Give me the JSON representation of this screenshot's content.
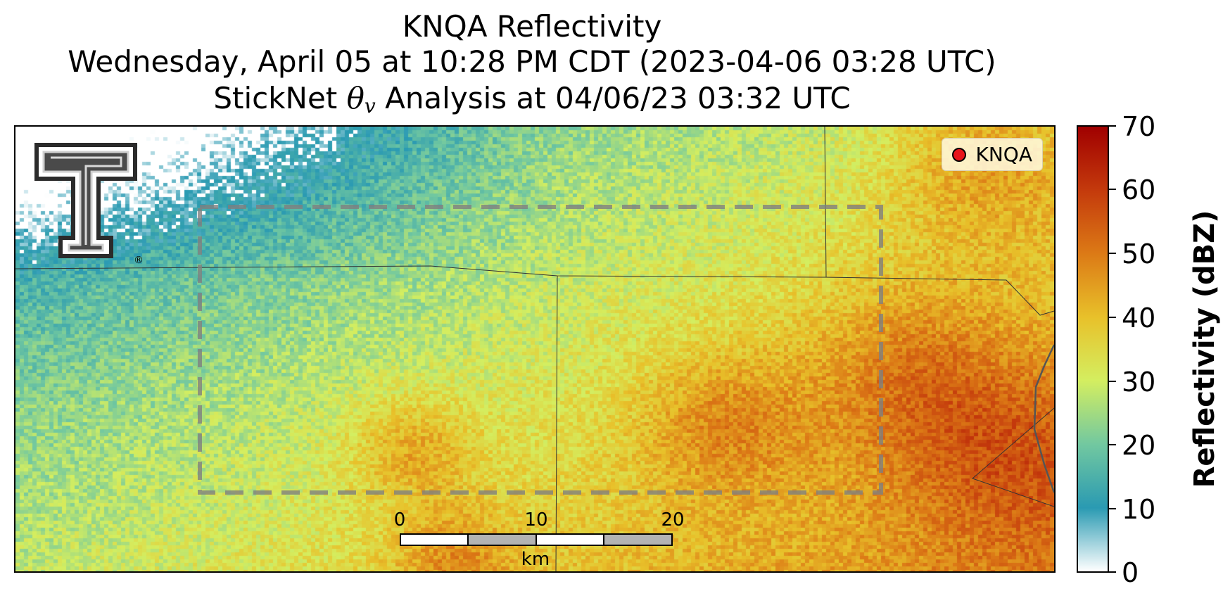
{
  "title": {
    "line1": "KNQA Reflectivity",
    "line2": "Wednesday, April 05 at 10:28 PM CDT (2023-04-06 03:28 UTC)",
    "line3_prefix": "StickNet ",
    "line3_symbol": "θ",
    "line3_subscript": "v",
    "line3_suffix": " Analysis at 04/06/23 03:32 UTC"
  },
  "legend": {
    "marker_color": "#e8141a",
    "label": "KNQA"
  },
  "logo": {
    "icon": "double-t-logo",
    "trademark": "®"
  },
  "scalebar": {
    "labels": [
      "0",
      "10",
      "20"
    ],
    "unit": "km"
  },
  "colorbar": {
    "label": "Reflectivity (dBZ)",
    "ticks": [
      "70",
      "60",
      "50",
      "40",
      "30",
      "20",
      "10",
      "0"
    ],
    "range": [
      0,
      70
    ],
    "colors": [
      "#ffffff",
      "#2a9ab2",
      "#72c8a0",
      "#d4ee60",
      "#e8c12a",
      "#dc7a16",
      "#c43a0c",
      "#a00000"
    ]
  },
  "analysis_box": {
    "style": "dashed",
    "color": "#808080"
  }
}
